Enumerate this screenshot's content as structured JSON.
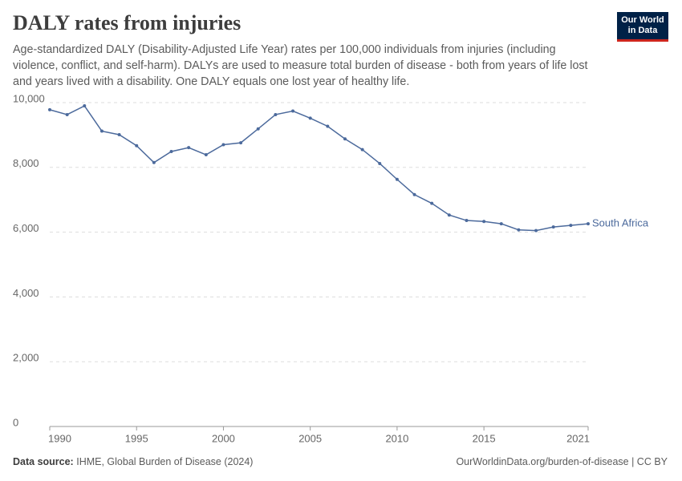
{
  "header": {
    "title": "DALY rates from injuries",
    "subtitle": "Age-standardized DALY (Disability-Adjusted Life Year) rates per 100,000 individuals from injuries (including violence, conflict, and self-harm). DALYs are used to measure total burden of disease - both from years of life lost and years lived with a disability. One DALY equals one lost year of healthy life."
  },
  "logo": {
    "lines": [
      "Our World",
      "in Data"
    ]
  },
  "chart_data": {
    "type": "line",
    "x": [
      1990,
      1991,
      1992,
      1993,
      1994,
      1995,
      1996,
      1997,
      1998,
      1999,
      2000,
      2001,
      2002,
      2003,
      2004,
      2005,
      2006,
      2007,
      2008,
      2009,
      2010,
      2011,
      2012,
      2013,
      2014,
      2015,
      2016,
      2017,
      2018,
      2019,
      2020,
      2021
    ],
    "series": [
      {
        "name": "South Africa",
        "color": "#4c6a9c",
        "values": [
          9780,
          9630,
          9900,
          9120,
          9010,
          8670,
          8150,
          8490,
          8610,
          8390,
          8700,
          8760,
          9190,
          9630,
          9740,
          9520,
          9270,
          8880,
          8550,
          8120,
          7630,
          7160,
          6890,
          6530,
          6360,
          6330,
          6260,
          6070,
          6050,
          6160,
          6210,
          6260
        ]
      }
    ],
    "xlim": [
      1990,
      2021
    ],
    "xticks": [
      1990,
      1995,
      2000,
      2005,
      2010,
      2015,
      2021
    ],
    "ylim": [
      0,
      10000
    ],
    "yticks": [
      0,
      {
        "value": 2000,
        "label": "2,000"
      },
      {
        "value": 4000,
        "label": "4,000"
      },
      {
        "value": 6000,
        "label": "6,000"
      },
      {
        "value": 8000,
        "label": "8,000"
      },
      {
        "value": 10000,
        "label": "10,000"
      }
    ],
    "grid": true
  },
  "footer": {
    "source_label": "Data source:",
    "source": "IHME, Global Burden of Disease (2024)",
    "url": "OurWorldinData.org/burden-of-disease | CC BY"
  }
}
